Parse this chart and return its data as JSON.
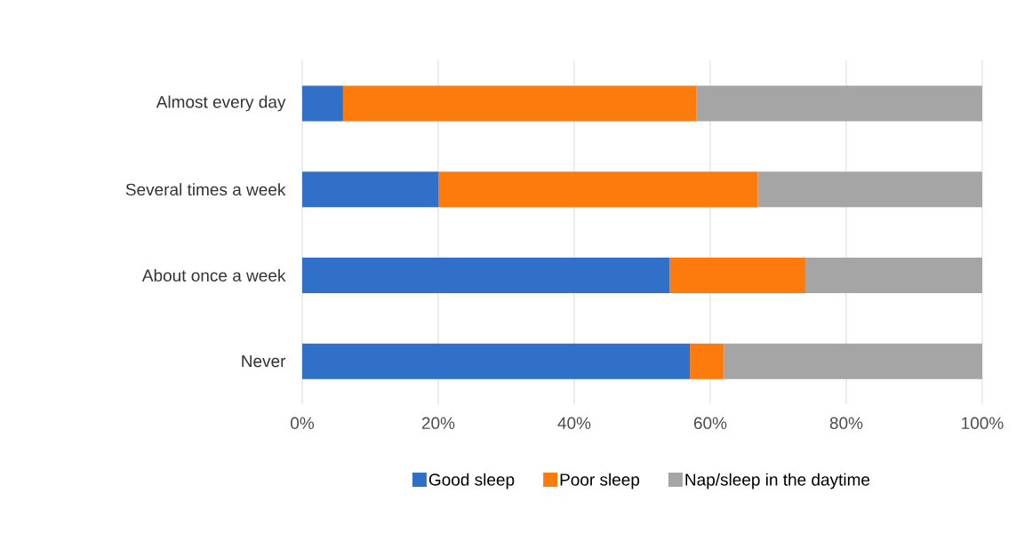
{
  "chart_data": {
    "type": "bar",
    "orientation": "horizontal",
    "stacked": true,
    "categories": [
      "Almost every day",
      "Several times a week",
      "About once a week",
      "Never"
    ],
    "series": [
      {
        "name": "Good sleep",
        "color": "#3070c8",
        "values": [
          6,
          20,
          54,
          57
        ]
      },
      {
        "name": "Poor sleep",
        "color": "#fd7a0c",
        "values": [
          52,
          47,
          20,
          5
        ]
      },
      {
        "name": "Nap/sleep in the daytime",
        "color": "#a5a5a5",
        "values": [
          42,
          33,
          26,
          38
        ]
      }
    ],
    "xlim": [
      0,
      100
    ],
    "xticks": [
      {
        "value": 0,
        "label": "0%"
      },
      {
        "value": 20,
        "label": "20%"
      },
      {
        "value": 40,
        "label": "40%"
      },
      {
        "value": 60,
        "label": "60%"
      },
      {
        "value": 80,
        "label": "80%"
      },
      {
        "value": 100,
        "label": "100%"
      }
    ],
    "grid": "x",
    "legend": "bottom"
  }
}
